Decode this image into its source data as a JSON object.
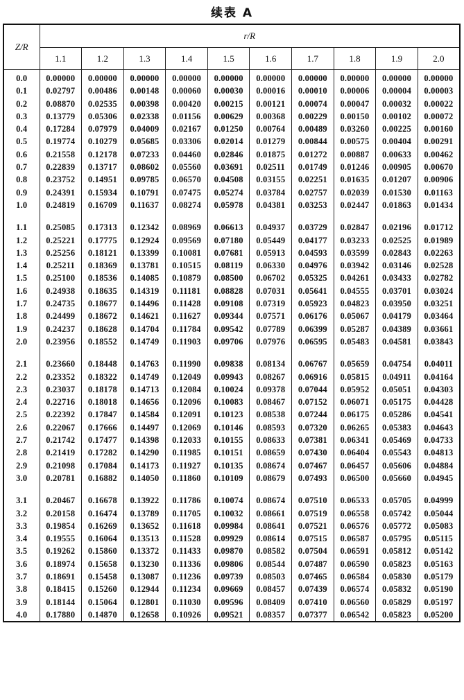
{
  "title": "续表 A",
  "header": {
    "row_label": "Z/R",
    "col_group_label": "r/R",
    "columns": [
      "1.1",
      "1.2",
      "1.3",
      "1.4",
      "1.5",
      "1.6",
      "1.7",
      "1.8",
      "1.9",
      "2.0"
    ]
  },
  "groups": [
    [
      {
        "z": "0.0",
        "v": [
          "0.00000",
          "0.00000",
          "0.00000",
          "0.00000",
          "0.00000",
          "0.00000",
          "0.00000",
          "0.00000",
          "0.00000",
          "0.00000"
        ]
      },
      {
        "z": "0.1",
        "v": [
          "0.02797",
          "0.00486",
          "0.00148",
          "0.00060",
          "0.00030",
          "0.00016",
          "0.00010",
          "0.00006",
          "0.00004",
          "0.00003"
        ]
      },
      {
        "z": "0.2",
        "v": [
          "0.08870",
          "0.02535",
          "0.00398",
          "0.00420",
          "0.00215",
          "0.00121",
          "0.00074",
          "0.00047",
          "0.00032",
          "0.00022"
        ]
      },
      {
        "z": "0.3",
        "v": [
          "0.13779",
          "0.05306",
          "0.02338",
          "0.01156",
          "0.00629",
          "0.00368",
          "0.00229",
          "0.00150",
          "0.00102",
          "0.00072"
        ]
      },
      {
        "z": "0.4",
        "v": [
          "0.17284",
          "0.07979",
          "0.04009",
          "0.02167",
          "0.01250",
          "0.00764",
          "0.00489",
          "0.03260",
          "0.00225",
          "0.00160"
        ]
      },
      {
        "z": "0.5",
        "v": [
          "0.19774",
          "0.10279",
          "0.05685",
          "0.03306",
          "0.02014",
          "0.01279",
          "0.00844",
          "0.00575",
          "0.00404",
          "0.00291"
        ]
      },
      {
        "z": "0.6",
        "v": [
          "0.21558",
          "0.12178",
          "0.07233",
          "0.04460",
          "0.02846",
          "0.01875",
          "0.01272",
          "0.00887",
          "0.00633",
          "0.00462"
        ]
      },
      {
        "z": "0.7",
        "v": [
          "0.22839",
          "0.13717",
          "0.08602",
          "0.05560",
          "0.03691",
          "0.02511",
          "0.01749",
          "0.01246",
          "0.00905",
          "0.00670"
        ]
      },
      {
        "z": "0.8",
        "v": [
          "0.23752",
          "0.14951",
          "0.09785",
          "0.06570",
          "0.04508",
          "0.03155",
          "0.02251",
          "0.01635",
          "0.01207",
          "0.00906"
        ]
      },
      {
        "z": "0.9",
        "v": [
          "0.24391",
          "0.15934",
          "0.10791",
          "0.07475",
          "0.05274",
          "0.03784",
          "0.02757",
          "0.02039",
          "0.01530",
          "0.01163"
        ]
      },
      {
        "z": "1.0",
        "v": [
          "0.24819",
          "0.16709",
          "0.11637",
          "0.08274",
          "0.05978",
          "0.04381",
          "0.03253",
          "0.02447",
          "0.01863",
          "0.01434"
        ]
      }
    ],
    [
      {
        "z": "1.1",
        "v": [
          "0.25085",
          "0.17313",
          "0.12342",
          "0.08969",
          "0.06613",
          "0.04937",
          "0.03729",
          "0.02847",
          "0.02196",
          "0.01712"
        ]
      },
      {
        "z": "1.2",
        "v": [
          "0.25221",
          "0.17775",
          "0.12924",
          "0.09569",
          "0.07180",
          "0.05449",
          "0.04177",
          "0.03233",
          "0.02525",
          "0.01989"
        ]
      },
      {
        "z": "1.3",
        "v": [
          "0.25256",
          "0.18121",
          "0.13399",
          "0.10081",
          "0.07681",
          "0.05913",
          "0.04593",
          "0.03599",
          "0.02843",
          "0.02263"
        ]
      },
      {
        "z": "1.4",
        "v": [
          "0.25211",
          "0.18369",
          "0.13781",
          "0.10515",
          "0.08119",
          "0.06330",
          "0.04976",
          "0.03942",
          "0.03146",
          "0.02528"
        ]
      },
      {
        "z": "1.5",
        "v": [
          "0.25100",
          "0.18536",
          "0.14085",
          "0.10879",
          "0.08500",
          "0.06702",
          "0.05325",
          "0.04261",
          "0.03433",
          "0.02782"
        ]
      },
      {
        "z": "1.6",
        "v": [
          "0.24938",
          "0.18635",
          "0.14319",
          "0.11181",
          "0.08828",
          "0.07031",
          "0.05641",
          "0.04555",
          "0.03701",
          "0.03024"
        ]
      },
      {
        "z": "1.7",
        "v": [
          "0.24735",
          "0.18677",
          "0.14496",
          "0.11428",
          "0.09108",
          "0.07319",
          "0.05923",
          "0.04823",
          "0.03950",
          "0.03251"
        ]
      },
      {
        "z": "1.8",
        "v": [
          "0.24499",
          "0.18672",
          "0.14621",
          "0.11627",
          "0.09344",
          "0.07571",
          "0.06176",
          "0.05067",
          "0.04179",
          "0.03464"
        ]
      },
      {
        "z": "1.9",
        "v": [
          "0.24237",
          "0.18628",
          "0.14704",
          "0.11784",
          "0.09542",
          "0.07789",
          "0.06399",
          "0.05287",
          "0.04389",
          "0.03661"
        ]
      },
      {
        "z": "2.0",
        "v": [
          "0.23956",
          "0.18552",
          "0.14749",
          "0.11903",
          "0.09706",
          "0.07976",
          "0.06595",
          "0.05483",
          "0.04581",
          "0.03843"
        ]
      }
    ],
    [
      {
        "z": "2.1",
        "v": [
          "0.23660",
          "0.18448",
          "0.14763",
          "0.11990",
          "0.09838",
          "0.08134",
          "0.06767",
          "0.05659",
          "0.04754",
          "0.04011"
        ]
      },
      {
        "z": "2.2",
        "v": [
          "0.23352",
          "0.18322",
          "0.14749",
          "0.12049",
          "0.09943",
          "0.08267",
          "0.06916",
          "0.05815",
          "0.04911",
          "0.04164"
        ]
      },
      {
        "z": "2.3",
        "v": [
          "0.23037",
          "0.18178",
          "0.14713",
          "0.12084",
          "0.10024",
          "0.09378",
          "0.07044",
          "0.05952",
          "0.05051",
          "0.04303"
        ]
      },
      {
        "z": "2.4",
        "v": [
          "0.22716",
          "0.18018",
          "0.14656",
          "0.12096",
          "0.10083",
          "0.08467",
          "0.07152",
          "0.06071",
          "0.05175",
          "0.04428"
        ]
      },
      {
        "z": "2.5",
        "v": [
          "0.22392",
          "0.17847",
          "0.14584",
          "0.12091",
          "0.10123",
          "0.08538",
          "0.07244",
          "0.06175",
          "0.05286",
          "0.04541"
        ]
      },
      {
        "z": "2.6",
        "v": [
          "0.22067",
          "0.17666",
          "0.14497",
          "0.12069",
          "0.10146",
          "0.08593",
          "0.07320",
          "0.06265",
          "0.05383",
          "0.04643"
        ]
      },
      {
        "z": "2.7",
        "v": [
          "0.21742",
          "0.17477",
          "0.14398",
          "0.12033",
          "0.10155",
          "0.08633",
          "0.07381",
          "0.06341",
          "0.05469",
          "0.04733"
        ]
      },
      {
        "z": "2.8",
        "v": [
          "0.21419",
          "0.17282",
          "0.14290",
          "0.11985",
          "0.10151",
          "0.08659",
          "0.07430",
          "0.06404",
          "0.05543",
          "0.04813"
        ]
      },
      {
        "z": "2.9",
        "v": [
          "0.21098",
          "0.17084",
          "0.14173",
          "0.11927",
          "0.10135",
          "0.08674",
          "0.07467",
          "0.06457",
          "0.05606",
          "0.04884"
        ]
      },
      {
        "z": "3.0",
        "v": [
          "0.20781",
          "0.16882",
          "0.14050",
          "0.11860",
          "0.10109",
          "0.08679",
          "0.07493",
          "0.06500",
          "0.05660",
          "0.04945"
        ]
      }
    ],
    [
      {
        "z": "3.1",
        "v": [
          "0.20467",
          "0.16678",
          "0.13922",
          "0.11786",
          "0.10074",
          "0.08674",
          "0.07510",
          "0.06533",
          "0.05705",
          "0.04999"
        ]
      },
      {
        "z": "3.2",
        "v": [
          "0.20158",
          "0.16474",
          "0.13789",
          "0.11705",
          "0.10032",
          "0.08661",
          "0.07519",
          "0.06558",
          "0.05742",
          "0.05044"
        ]
      },
      {
        "z": "3.3",
        "v": [
          "0.19854",
          "0.16269",
          "0.13652",
          "0.11618",
          "0.09984",
          "0.08641",
          "0.07521",
          "0.06576",
          "0.05772",
          "0.05083"
        ]
      },
      {
        "z": "3.4",
        "v": [
          "0.19555",
          "0.16064",
          "0.13513",
          "0.11528",
          "0.09929",
          "0.08614",
          "0.07515",
          "0.06587",
          "0.05795",
          "0.05115"
        ]
      },
      {
        "z": "3.5",
        "v": [
          "0.19262",
          "0.15860",
          "0.13372",
          "0.11433",
          "0.09870",
          "0.08582",
          "0.07504",
          "0.06591",
          "0.05812",
          "0.05142"
        ]
      },
      {
        "z": "3.6",
        "v": [
          "0.18974",
          "0.15658",
          "0.13230",
          "0.11336",
          "0.09806",
          "0.08544",
          "0.07487",
          "0.06590",
          "0.05823",
          "0.05163"
        ]
      },
      {
        "z": "3.7",
        "v": [
          "0.18691",
          "0.15458",
          "0.13087",
          "0.11236",
          "0.09739",
          "0.08503",
          "0.07465",
          "0.06584",
          "0.05830",
          "0.05179"
        ]
      },
      {
        "z": "3.8",
        "v": [
          "0.18415",
          "0.15260",
          "0.12944",
          "0.11234",
          "0.09669",
          "0.08457",
          "0.07439",
          "0.06574",
          "0.05832",
          "0.05190"
        ]
      },
      {
        "z": "3.9",
        "v": [
          "0.18144",
          "0.15064",
          "0.12801",
          "0.11030",
          "0.09596",
          "0.08409",
          "0.07410",
          "0.06560",
          "0.05829",
          "0.05197"
        ]
      },
      {
        "z": "4.0",
        "v": [
          "0.17880",
          "0.14870",
          "0.12658",
          "0.10926",
          "0.09521",
          "0.08357",
          "0.07377",
          "0.06542",
          "0.05823",
          "0.05200"
        ]
      }
    ]
  ]
}
